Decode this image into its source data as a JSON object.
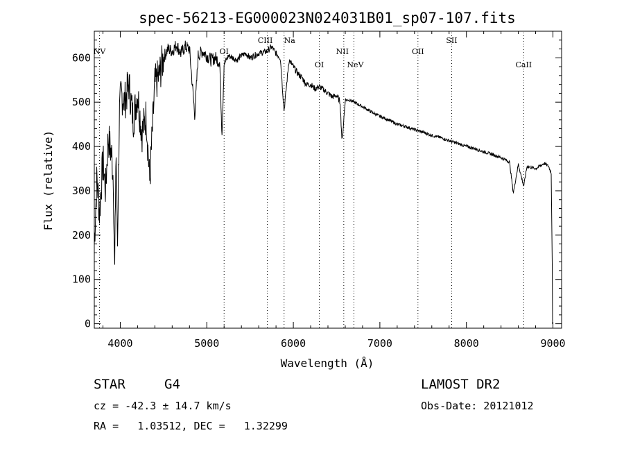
{
  "chart_data": {
    "type": "line",
    "title": "spec-56213-EG000023N024031B01_sp07-107.fits",
    "xlabel": "Wavelength (Å)",
    "ylabel": "Flux (relative)",
    "xlim": [
      3700,
      9100
    ],
    "ylim": [
      -10,
      660
    ],
    "x_ticks": [
      4000,
      5000,
      6000,
      7000,
      8000,
      9000
    ],
    "y_ticks": [
      0,
      100,
      200,
      300,
      400,
      500,
      600
    ],
    "grid": false,
    "series": [
      {
        "x": [
          3700,
          3730,
          3760,
          3800,
          3830,
          3860,
          3900,
          3920,
          3935,
          3950,
          3968,
          3990,
          4010,
          4050,
          4100,
          4150,
          4200,
          4250,
          4300,
          4340,
          4400,
          4450,
          4500,
          4550,
          4600,
          4650,
          4700,
          4750,
          4800,
          4861,
          4900,
          4950,
          5000,
          5050,
          5100,
          5150,
          5175,
          5200,
          5250,
          5300,
          5350,
          5400,
          5450,
          5500,
          5550,
          5600,
          5650,
          5700,
          5750,
          5800,
          5850,
          5893,
          5950,
          6000,
          6050,
          6100,
          6150,
          6200,
          6250,
          6300,
          6350,
          6400,
          6450,
          6500,
          6540,
          6563,
          6600,
          6650,
          6700,
          6800,
          6900,
          7000,
          7100,
          7200,
          7300,
          7400,
          7500,
          7600,
          7700,
          7800,
          7900,
          8000,
          8100,
          8200,
          8300,
          8400,
          8450,
          8498,
          8542,
          8600,
          8662,
          8700,
          8800,
          8900,
          8950,
          8980,
          9000
        ],
        "y": [
          180,
          330,
          250,
          370,
          300,
          420,
          380,
          330,
          100,
          400,
          180,
          470,
          520,
          500,
          540,
          460,
          520,
          430,
          470,
          320,
          540,
          560,
          600,
          620,
          615,
          630,
          610,
          625,
          620,
          470,
          605,
          615,
          605,
          595,
          600,
          590,
          430,
          585,
          605,
          600,
          595,
          605,
          610,
          600,
          605,
          610,
          612,
          615,
          625,
          610,
          600,
          480,
          595,
          580,
          565,
          555,
          540,
          540,
          530,
          535,
          528,
          520,
          512,
          515,
          500,
          410,
          505,
          505,
          500,
          490,
          478,
          468,
          460,
          450,
          445,
          438,
          432,
          425,
          420,
          413,
          407,
          400,
          395,
          388,
          382,
          375,
          370,
          365,
          295,
          360,
          310,
          355,
          350,
          362,
          355,
          340,
          0
        ]
      }
    ],
    "lines": [
      {
        "name": "NV",
        "x": 3760
      },
      {
        "name": "OI",
        "x": 5200
      },
      {
        "name": "CIII",
        "x": 5700
      },
      {
        "name": "Na",
        "x": 5893
      },
      {
        "name": "OI",
        "x": 6300
      },
      {
        "name": "NII",
        "x": 6583
      },
      {
        "name": "NeV",
        "x": 6700
      },
      {
        "name": "OII",
        "x": 7440
      },
      {
        "name": "SII",
        "x": 7830
      },
      {
        "name": "CaII",
        "x": 8662
      }
    ]
  },
  "info": {
    "class_label": "STAR",
    "subclass_label": "G4",
    "cz_text": "cz = -42.3 ± 14.7 km/s",
    "coords_text": "RA =   1.03512, DEC =   1.32299",
    "survey_label": "LAMOST DR2",
    "obs_date_text": "Obs-Date: 20121012"
  }
}
